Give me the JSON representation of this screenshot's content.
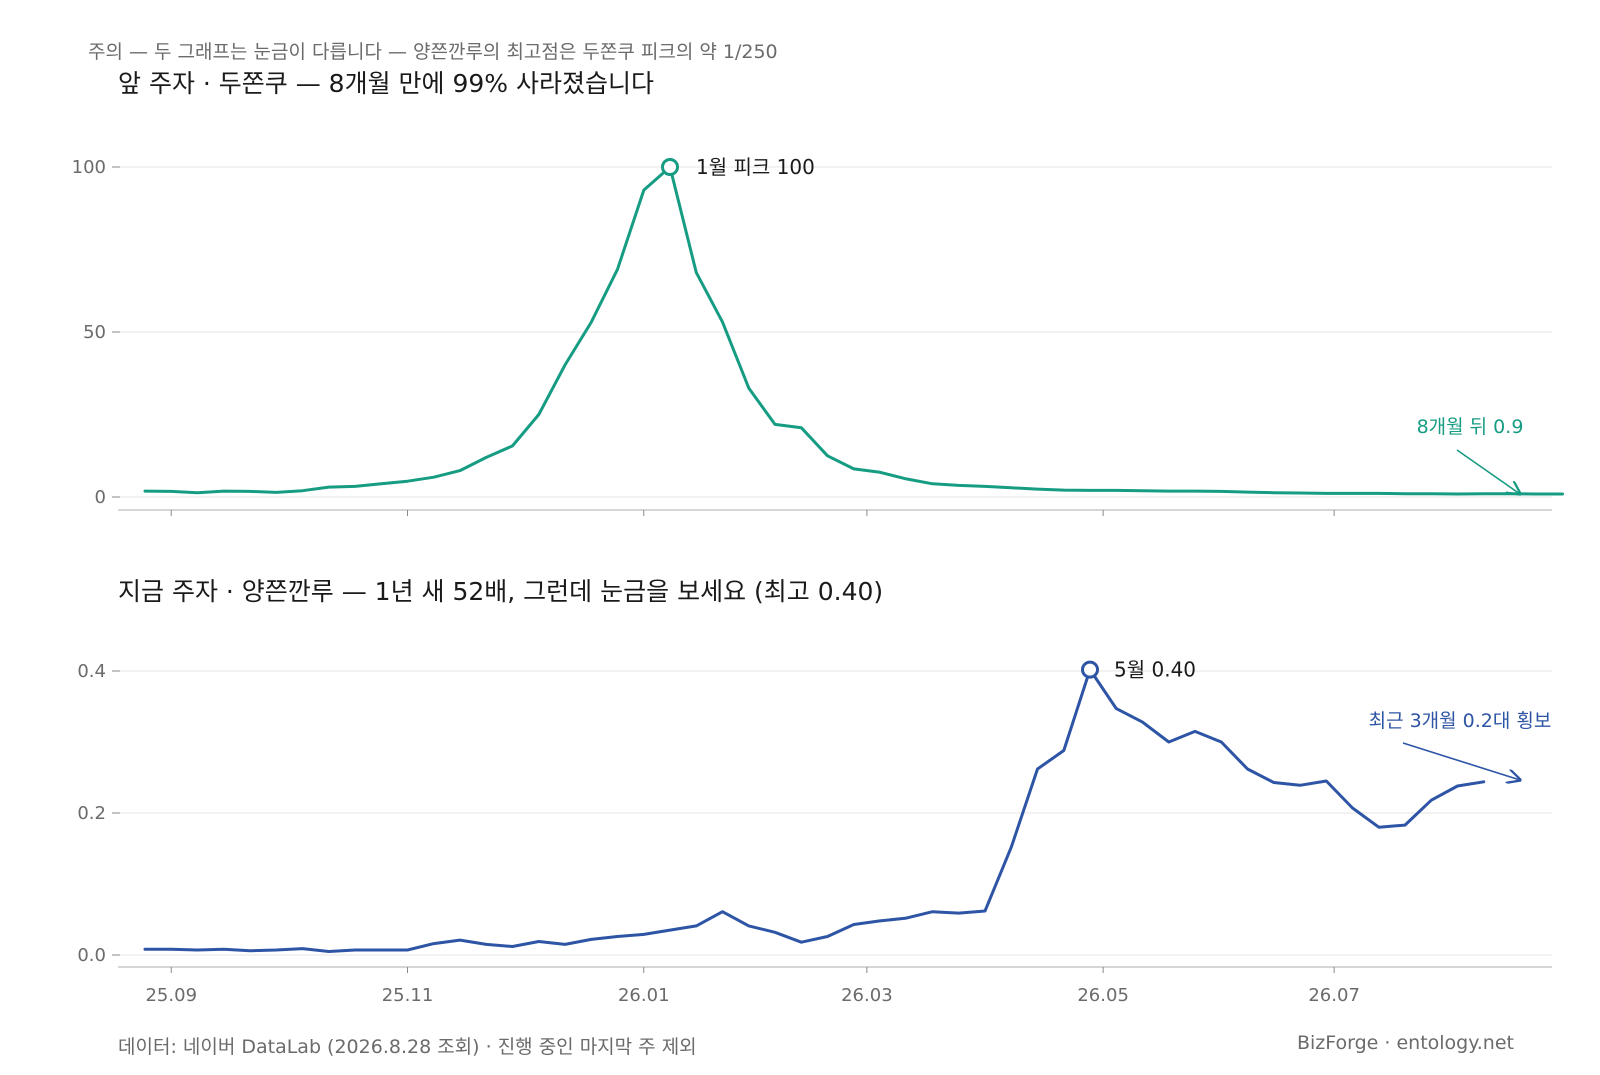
{
  "note": "주의 — 두 그래프는 눈금이 다릅니다 — 양쯘깐루의 최고점은 두쫀쿠 피크의 약 1/250",
  "footer": {
    "source": "데이터: 네이버 DataLab (2026.8.28 조회) · 진행 중인 마지막 주 제외",
    "credit": "BizForge · entology.net"
  },
  "colors": {
    "top": "#169c83",
    "bottom": "#2e55a5",
    "grid": "#e4e4e4",
    "axis": "#bdbdbd"
  },
  "chart_data": [
    {
      "type": "line",
      "title": "앞 주자 · 두쫀쿠 — 8개월 만에 99% 사라졌습니다",
      "ylim": [
        0,
        100
      ],
      "yticks": [
        0,
        50,
        100
      ],
      "ytick_labels": [
        "0",
        "50",
        "100"
      ],
      "grid": true,
      "series": [
        {
          "values": [
            1.8,
            1.7,
            1.3,
            1.8,
            1.7,
            1.4,
            1.9,
            3.0,
            3.2,
            4.0,
            4.8,
            6.0,
            8.0,
            12.0,
            15.5,
            25.0,
            40.0,
            53.0,
            69.0,
            93.0,
            100.0,
            68.0,
            53.0,
            33.0,
            22.0,
            21.0,
            12.5,
            8.5,
            7.5,
            5.5,
            4.0,
            3.5,
            3.2,
            2.8,
            2.4,
            2.1,
            2.0,
            2.0,
            1.9,
            1.8,
            1.8,
            1.7,
            1.5,
            1.3,
            1.2,
            1.1,
            1.1,
            1.1,
            1.0,
            1.0,
            0.9,
            1.0,
            1.0,
            0.9,
            0.9
          ]
        }
      ],
      "peak": {
        "index": 20,
        "label": "1월 피크 100"
      },
      "annotation": {
        "text": "8개월 뒤 0.9"
      }
    },
    {
      "type": "line",
      "title": "지금 주자 · 양쯘깐루 — 1년 새 52배, 그런데 눈금을 보세요 (최고 0.40)",
      "ylim": [
        0,
        0.4
      ],
      "yticks": [
        0,
        0.2,
        0.4
      ],
      "ytick_labels": [
        "0.0",
        "0.2",
        "0.4"
      ],
      "grid": true,
      "series": [
        {
          "values": [
            0.008,
            0.008,
            0.007,
            0.008,
            0.006,
            0.007,
            0.009,
            0.005,
            0.007,
            0.007,
            0.007,
            0.016,
            0.021,
            0.015,
            0.012,
            0.019,
            0.015,
            0.022,
            0.026,
            0.029,
            0.035,
            0.041,
            0.061,
            0.041,
            0.032,
            0.018,
            0.026,
            0.043,
            0.048,
            0.052,
            0.061,
            0.059,
            0.062,
            0.152,
            0.262,
            0.288,
            0.402,
            0.347,
            0.328,
            0.3,
            0.315,
            0.3,
            0.262,
            0.243,
            0.239,
            0.245,
            0.207,
            0.18,
            0.183,
            0.218,
            0.238,
            0.244
          ]
        }
      ],
      "peak": {
        "index": 36,
        "label": "5월 0.40"
      },
      "annotation": {
        "text": "최근 3개월 0.2대 횡보"
      }
    }
  ],
  "x_axis": {
    "tick_labels": [
      "25.09",
      "25.11",
      "26.01",
      "26.03",
      "26.05",
      "26.07"
    ]
  }
}
